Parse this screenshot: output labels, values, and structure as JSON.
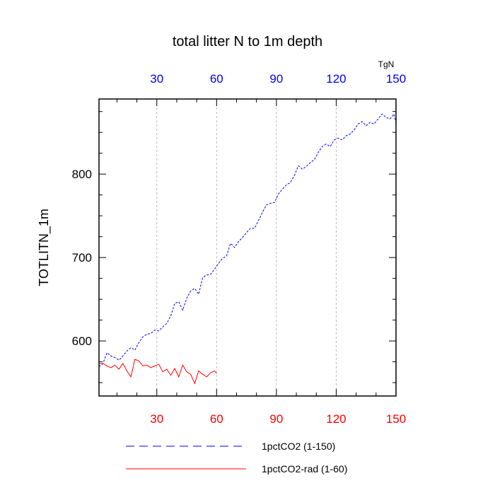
{
  "chart_data": {
    "type": "line",
    "title": "total litter N to 1m depth",
    "ylabel": "TOTLITN_1m",
    "units": "TgN",
    "xlim": [
      1,
      150
    ],
    "ylim": [
      534,
      890
    ],
    "x_ticks": [
      30,
      60,
      90,
      120,
      150
    ],
    "y_ticks": [
      600,
      700,
      800
    ],
    "grid": "vertical dashed at x ticks",
    "legend_position": "bottom",
    "colors": {
      "series1": "#0000ff",
      "series2": "#ff0000"
    },
    "series": [
      {
        "name": "1pctCO2 (1-150)",
        "style": "dashed",
        "color": "#0000ff",
        "points": [
          [
            1,
            569
          ],
          [
            3,
            573
          ],
          [
            5,
            586
          ],
          [
            7,
            582
          ],
          [
            9,
            580
          ],
          [
            11,
            577
          ],
          [
            13,
            582
          ],
          [
            15,
            588
          ],
          [
            17,
            592
          ],
          [
            19,
            589
          ],
          [
            21,
            598
          ],
          [
            23,
            605
          ],
          [
            25,
            608
          ],
          [
            27,
            609
          ],
          [
            29,
            613
          ],
          [
            31,
            612
          ],
          [
            33,
            617
          ],
          [
            35,
            621
          ],
          [
            37,
            630
          ],
          [
            39,
            645
          ],
          [
            41,
            647
          ],
          [
            43,
            637
          ],
          [
            45,
            651
          ],
          [
            47,
            660
          ],
          [
            49,
            663
          ],
          [
            51,
            656
          ],
          [
            53,
            676
          ],
          [
            55,
            679
          ],
          [
            57,
            680
          ],
          [
            59,
            686
          ],
          [
            61,
            693
          ],
          [
            63,
            699
          ],
          [
            65,
            702
          ],
          [
            67,
            717
          ],
          [
            69,
            712
          ],
          [
            71,
            719
          ],
          [
            73,
            724
          ],
          [
            75,
            730
          ],
          [
            77,
            735
          ],
          [
            79,
            735
          ],
          [
            81,
            744
          ],
          [
            83,
            754
          ],
          [
            85,
            763
          ],
          [
            87,
            765
          ],
          [
            89,
            766
          ],
          [
            91,
            776
          ],
          [
            93,
            782
          ],
          [
            95,
            787
          ],
          [
            97,
            790
          ],
          [
            99,
            798
          ],
          [
            101,
            810
          ],
          [
            103,
            806
          ],
          [
            105,
            809
          ],
          [
            107,
            814
          ],
          [
            109,
            817
          ],
          [
            111,
            826
          ],
          [
            113,
            833
          ],
          [
            115,
            836
          ],
          [
            117,
            833
          ],
          [
            119,
            841
          ],
          [
            121,
            843
          ],
          [
            123,
            841
          ],
          [
            125,
            846
          ],
          [
            127,
            848
          ],
          [
            129,
            853
          ],
          [
            131,
            860
          ],
          [
            133,
            863
          ],
          [
            135,
            858
          ],
          [
            137,
            862
          ],
          [
            139,
            860
          ],
          [
            141,
            866
          ],
          [
            143,
            872
          ],
          [
            145,
            868
          ],
          [
            147,
            866
          ],
          [
            149,
            872
          ],
          [
            150,
            861
          ]
        ]
      },
      {
        "name": "1pctCO2-rad (1-60)",
        "style": "solid",
        "color": "#ff0000",
        "points": [
          [
            1,
            573
          ],
          [
            3,
            573
          ],
          [
            5,
            570
          ],
          [
            7,
            568
          ],
          [
            9,
            571
          ],
          [
            11,
            566
          ],
          [
            13,
            573
          ],
          [
            15,
            564
          ],
          [
            17,
            557
          ],
          [
            19,
            578
          ],
          [
            21,
            576
          ],
          [
            23,
            570
          ],
          [
            25,
            571
          ],
          [
            27,
            568
          ],
          [
            29,
            570
          ],
          [
            31,
            572
          ],
          [
            33,
            563
          ],
          [
            35,
            566
          ],
          [
            37,
            559
          ],
          [
            39,
            567
          ],
          [
            41,
            557
          ],
          [
            43,
            571
          ],
          [
            45,
            563
          ],
          [
            47,
            560
          ],
          [
            49,
            549
          ],
          [
            51,
            564
          ],
          [
            53,
            560
          ],
          [
            55,
            557
          ],
          [
            57,
            562
          ],
          [
            59,
            564
          ],
          [
            60,
            561
          ]
        ]
      }
    ]
  }
}
